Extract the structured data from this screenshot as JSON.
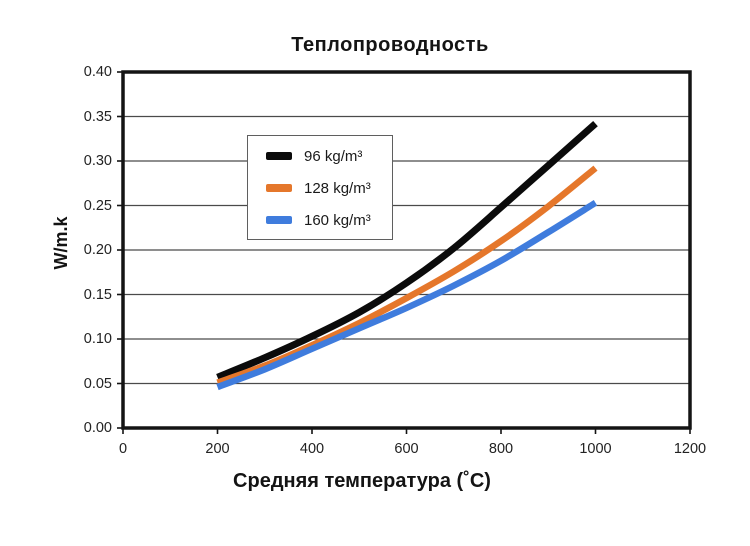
{
  "chart_data": {
    "type": "line",
    "title": "Теплопроводность",
    "xlabel": "Средняя температура (˚C)",
    "ylabel": "W/m.k",
    "xlim": [
      0,
      1200
    ],
    "ylim": [
      0.0,
      0.4
    ],
    "x_ticks": [
      0,
      200,
      400,
      600,
      800,
      1000,
      1200
    ],
    "y_ticks": [
      0.0,
      0.05,
      0.1,
      0.15,
      0.2,
      0.25,
      0.3,
      0.35,
      0.4
    ],
    "grid": "horizontal",
    "legend_position": "upper-left-inside",
    "x": [
      200,
      300,
      400,
      500,
      600,
      700,
      800,
      900,
      1000
    ],
    "series": [
      {
        "name": "96 kg/m³",
        "color": "#0b0b0b",
        "line_width": 7,
        "values": [
          0.057,
          0.079,
          0.103,
          0.13,
          0.163,
          0.202,
          0.248,
          0.295,
          0.342
        ]
      },
      {
        "name": "128 kg/m³",
        "color": "#e5772b",
        "line_width": 6.5,
        "values": [
          0.051,
          0.07,
          0.093,
          0.118,
          0.146,
          0.176,
          0.21,
          0.249,
          0.292
        ]
      },
      {
        "name": "160 kg/m³",
        "color": "#3f7cdd",
        "line_width": 6.5,
        "values": [
          0.046,
          0.066,
          0.089,
          0.112,
          0.135,
          0.16,
          0.188,
          0.22,
          0.253
        ]
      }
    ],
    "style": {
      "border_color": "#141414",
      "grid_color": "#4a4a4a",
      "background": "#ffffff"
    }
  }
}
